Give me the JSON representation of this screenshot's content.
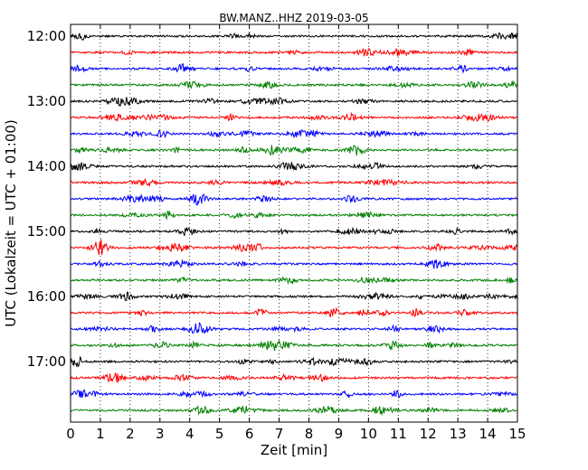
{
  "chart_data": {
    "type": "line",
    "title": "BW.MANZ..HHZ 2019-03-05",
    "xlabel": "Zeit  [min]",
    "ylabel": "UTC (Lokalzeit = UTC + 01:00)",
    "xlim": [
      0,
      15
    ],
    "x_ticks": [
      0,
      1,
      2,
      3,
      4,
      5,
      6,
      7,
      8,
      9,
      10,
      11,
      12,
      13,
      14,
      15
    ],
    "x_tick_labels": [
      "0",
      "1",
      "2",
      "3",
      "4",
      "5",
      "6",
      "7",
      "8",
      "9",
      "10",
      "11",
      "12",
      "13",
      "14",
      "15"
    ],
    "y_tick_labels": [
      "12:00",
      "13:00",
      "14:00",
      "15:00",
      "16:00",
      "17:00"
    ],
    "trace_interval_min": 15,
    "traces_per_hour": 4,
    "grid": "vertical-dotted",
    "series_colors": [
      "#000000",
      "#ff0000",
      "#0000ff",
      "#008000"
    ],
    "traces": [
      {
        "start": "12:00"
      },
      {
        "start": "12:15"
      },
      {
        "start": "12:30"
      },
      {
        "start": "12:45"
      },
      {
        "start": "13:00"
      },
      {
        "start": "13:15"
      },
      {
        "start": "13:30"
      },
      {
        "start": "13:45"
      },
      {
        "start": "14:00"
      },
      {
        "start": "14:15"
      },
      {
        "start": "14:30"
      },
      {
        "start": "14:45"
      },
      {
        "start": "15:00"
      },
      {
        "start": "15:15"
      },
      {
        "start": "15:30"
      },
      {
        "start": "15:45"
      },
      {
        "start": "16:00"
      },
      {
        "start": "16:15"
      },
      {
        "start": "16:30"
      },
      {
        "start": "16:45"
      },
      {
        "start": "17:00"
      },
      {
        "start": "17:15"
      },
      {
        "start": "17:30"
      },
      {
        "start": "17:45"
      }
    ]
  }
}
